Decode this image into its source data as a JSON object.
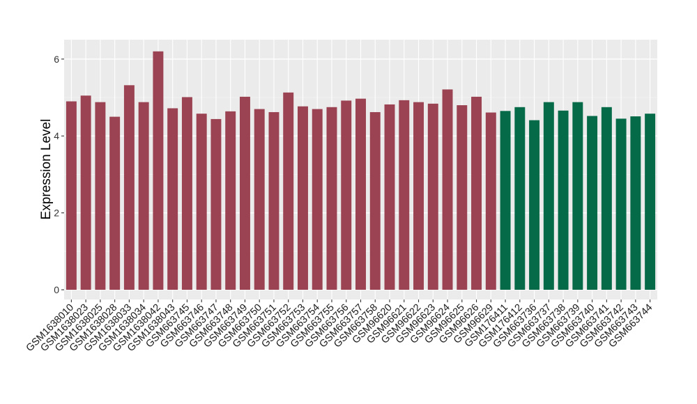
{
  "chart_data": {
    "type": "bar",
    "title": "",
    "xlabel": "",
    "ylabel": "Expression Level",
    "ylim": [
      0,
      6.5
    ],
    "yticks": [
      0,
      2,
      4,
      6
    ],
    "grid": true,
    "legend": "none",
    "colors": {
      "group_a": "#9B4352",
      "group_b": "#056A47",
      "panel_bg": "#EBEBEB",
      "grid": "#FFFFFF"
    },
    "categories": [
      "GSM1638010",
      "GSM1638023",
      "GSM1638025",
      "GSM1638028",
      "GSM1638033",
      "GSM1638034",
      "GSM1638042",
      "GSM1638043",
      "GSM663745",
      "GSM663746",
      "GSM663747",
      "GSM663748",
      "GSM663749",
      "GSM663750",
      "GSM663751",
      "GSM663752",
      "GSM663753",
      "GSM663754",
      "GSM663755",
      "GSM663756",
      "GSM663757",
      "GSM663758",
      "GSM96620",
      "GSM96621",
      "GSM96622",
      "GSM96623",
      "GSM96624",
      "GSM96625",
      "GSM96626",
      "GSM96629",
      "GSM176411",
      "GSM176412",
      "GSM663736",
      "GSM663737",
      "GSM663738",
      "GSM663739",
      "GSM663740",
      "GSM663741",
      "GSM663742",
      "GSM663743",
      "GSM663744"
    ],
    "values": [
      4.9,
      5.05,
      4.88,
      4.5,
      5.32,
      4.88,
      6.2,
      4.72,
      5.01,
      4.58,
      4.44,
      4.64,
      5.02,
      4.7,
      4.62,
      5.13,
      4.77,
      4.7,
      4.75,
      4.92,
      4.97,
      4.62,
      4.82,
      4.93,
      4.88,
      4.84,
      5.21,
      4.8,
      5.02,
      4.61,
      4.65,
      4.75,
      4.41,
      4.88,
      4.66,
      4.88,
      4.52,
      4.75,
      4.45,
      4.51,
      4.58
    ],
    "groups": [
      "a",
      "a",
      "a",
      "a",
      "a",
      "a",
      "a",
      "a",
      "a",
      "a",
      "a",
      "a",
      "a",
      "a",
      "a",
      "a",
      "a",
      "a",
      "a",
      "a",
      "a",
      "a",
      "a",
      "a",
      "a",
      "a",
      "a",
      "a",
      "a",
      "a",
      "b",
      "b",
      "b",
      "b",
      "b",
      "b",
      "b",
      "b",
      "b",
      "b",
      "b"
    ]
  }
}
